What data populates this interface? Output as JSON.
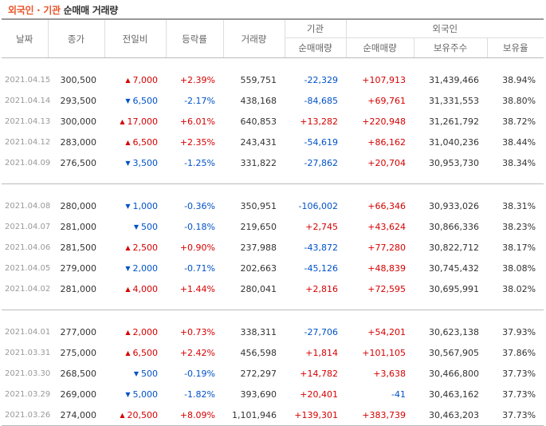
{
  "title": {
    "part1": "외국인",
    "sep": " · ",
    "part2": "기관",
    "part3": " 순매매 거래량"
  },
  "headers": {
    "date": "날짜",
    "close": "종가",
    "change": "전일비",
    "rate": "등락률",
    "volume": "거래량",
    "inst": "기관",
    "foreign": "외국인",
    "inst_net": "순매매량",
    "foreign_net": "순매매량",
    "holdings": "보유주수",
    "hold_ratio": "보유율"
  },
  "colors": {
    "up": "#d60000",
    "down": "#0051c8",
    "title_accent": "#e8542a"
  },
  "groups": [
    [
      {
        "date": "2021.04.15",
        "close": "300,500",
        "dir": "up",
        "change": "7,000",
        "rate": "+2.39%",
        "volume": "559,751",
        "inst": "-22,329",
        "foreign": "+107,913",
        "holdings": "31,439,466",
        "ratio": "38.94%"
      },
      {
        "date": "2021.04.14",
        "close": "293,500",
        "dir": "down",
        "change": "6,500",
        "rate": "-2.17%",
        "volume": "438,168",
        "inst": "-84,685",
        "foreign": "+69,761",
        "holdings": "31,331,553",
        "ratio": "38.80%"
      },
      {
        "date": "2021.04.13",
        "close": "300,000",
        "dir": "up",
        "change": "17,000",
        "rate": "+6.01%",
        "volume": "640,853",
        "inst": "+13,282",
        "foreign": "+220,948",
        "holdings": "31,261,792",
        "ratio": "38.72%"
      },
      {
        "date": "2021.04.12",
        "close": "283,000",
        "dir": "up",
        "change": "6,500",
        "rate": "+2.35%",
        "volume": "243,431",
        "inst": "-54,619",
        "foreign": "+86,162",
        "holdings": "31,040,236",
        "ratio": "38.44%"
      },
      {
        "date": "2021.04.09",
        "close": "276,500",
        "dir": "down",
        "change": "3,500",
        "rate": "-1.25%",
        "volume": "331,822",
        "inst": "-27,862",
        "foreign": "+20,704",
        "holdings": "30,953,730",
        "ratio": "38.34%"
      }
    ],
    [
      {
        "date": "2021.04.08",
        "close": "280,000",
        "dir": "down",
        "change": "1,000",
        "rate": "-0.36%",
        "volume": "350,951",
        "inst": "-106,002",
        "foreign": "+66,346",
        "holdings": "30,933,026",
        "ratio": "38.31%"
      },
      {
        "date": "2021.04.07",
        "close": "281,000",
        "dir": "down",
        "change": "500",
        "rate": "-0.18%",
        "volume": "219,650",
        "inst": "+2,745",
        "foreign": "+43,624",
        "holdings": "30,866,336",
        "ratio": "38.23%"
      },
      {
        "date": "2021.04.06",
        "close": "281,500",
        "dir": "up",
        "change": "2,500",
        "rate": "+0.90%",
        "volume": "237,988",
        "inst": "-43,872",
        "foreign": "+77,280",
        "holdings": "30,822,712",
        "ratio": "38.17%"
      },
      {
        "date": "2021.04.05",
        "close": "279,000",
        "dir": "down",
        "change": "2,000",
        "rate": "-0.71%",
        "volume": "202,663",
        "inst": "-45,126",
        "foreign": "+48,839",
        "holdings": "30,745,432",
        "ratio": "38.08%"
      },
      {
        "date": "2021.04.02",
        "close": "281,000",
        "dir": "up",
        "change": "4,000",
        "rate": "+1.44%",
        "volume": "280,041",
        "inst": "+2,816",
        "foreign": "+72,595",
        "holdings": "30,695,991",
        "ratio": "38.02%"
      }
    ],
    [
      {
        "date": "2021.04.01",
        "close": "277,000",
        "dir": "up",
        "change": "2,000",
        "rate": "+0.73%",
        "volume": "338,311",
        "inst": "-27,706",
        "foreign": "+54,201",
        "holdings": "30,623,138",
        "ratio": "37.93%"
      },
      {
        "date": "2021.03.31",
        "close": "275,000",
        "dir": "up",
        "change": "6,500",
        "rate": "+2.42%",
        "volume": "456,598",
        "inst": "+1,814",
        "foreign": "+101,105",
        "holdings": "30,567,905",
        "ratio": "37.86%"
      },
      {
        "date": "2021.03.30",
        "close": "268,500",
        "dir": "down",
        "change": "500",
        "rate": "-0.19%",
        "volume": "272,297",
        "inst": "+14,782",
        "foreign": "+3,638",
        "holdings": "30,466,800",
        "ratio": "37.73%"
      },
      {
        "date": "2021.03.29",
        "close": "269,000",
        "dir": "down",
        "change": "5,000",
        "rate": "-1.82%",
        "volume": "393,690",
        "inst": "+20,401",
        "foreign": "-41",
        "holdings": "30,463,162",
        "ratio": "37.73%"
      },
      {
        "date": "2021.03.26",
        "close": "274,000",
        "dir": "up",
        "change": "20,500",
        "rate": "+8.09%",
        "volume": "1,101,946",
        "inst": "+139,301",
        "foreign": "+383,739",
        "holdings": "30,463,203",
        "ratio": "37.73%"
      }
    ]
  ]
}
